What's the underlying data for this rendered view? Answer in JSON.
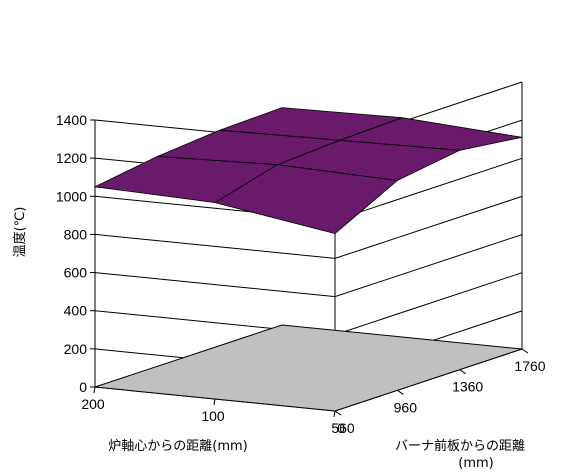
{
  "chart_data": {
    "type": "surface3d",
    "title": "",
    "ylabel": "温度(℃)",
    "zlim": [
      0,
      1400
    ],
    "z_ticks": [
      "0",
      "200",
      "400",
      "600",
      "800",
      "1000",
      "1200",
      "1400"
    ],
    "axis_x": {
      "label": "炉軸心からの距離(mm)",
      "values": [
        200,
        100,
        0
      ],
      "ticks": [
        "200",
        "100",
        "0"
      ]
    },
    "axis_depth": {
      "label_line1": "バーナ前板からの距離",
      "label_line2": "(mm)",
      "values": [
        560,
        960,
        1360,
        1760
      ],
      "ticks": [
        "560",
        "960",
        "1360",
        "1760"
      ]
    },
    "temperature": [
      {
        "distance_from_axis_mm": 200,
        "values": [
          1050,
          1100,
          1130,
          1140
        ]
      },
      {
        "distance_from_axis_mm": 100,
        "values": [
          1030,
          1120,
          1140,
          1150
        ]
      },
      {
        "distance_from_axis_mm": 0,
        "values": [
          930,
          1100,
          1150,
          1110
        ]
      }
    ],
    "colors": {
      "surface_top": "#f77f7f",
      "surface_under": "#6a1a6a",
      "floor": "#c0c0c0",
      "grid": "#000000"
    },
    "grid": true
  }
}
